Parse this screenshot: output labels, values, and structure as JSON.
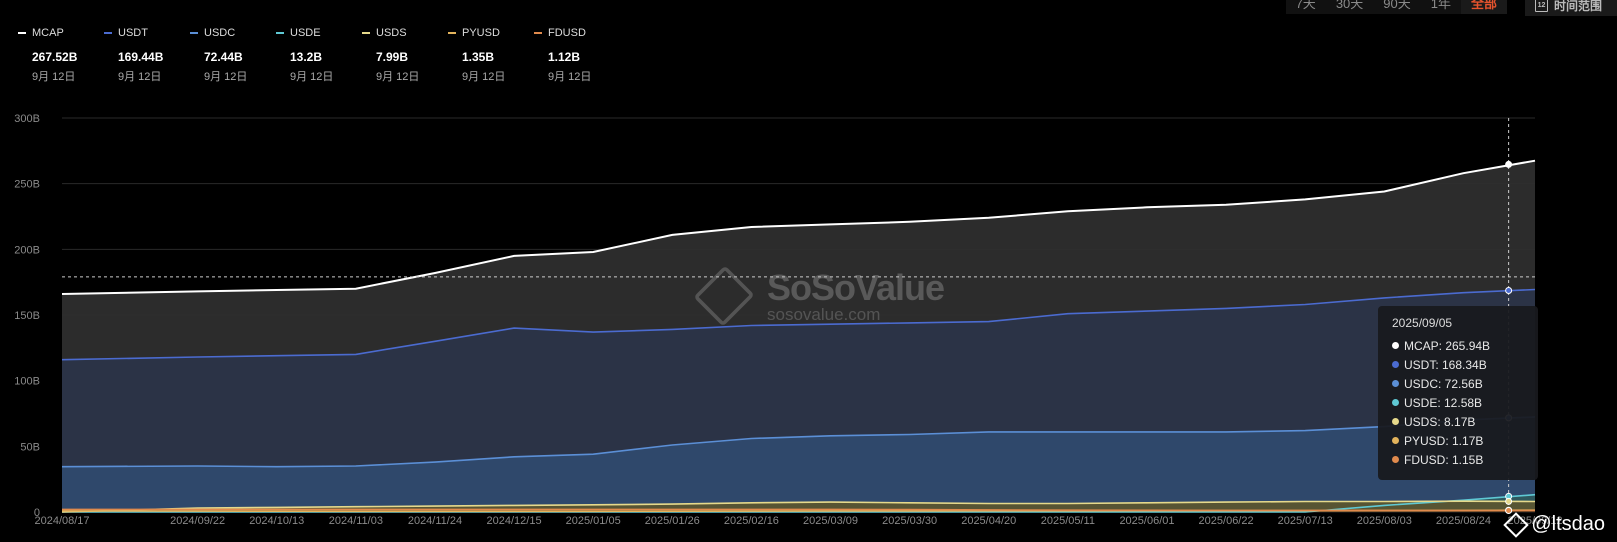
{
  "controls": {
    "ranges": [
      "7天",
      "30天",
      "90天",
      "1年",
      "全部"
    ],
    "active_range": "全部",
    "time_range_label": "时间范围",
    "calendar_icon": "calendar-icon"
  },
  "legend": [
    {
      "name": "MCAP",
      "value": "267.52B",
      "date": "9月 12日",
      "color": "#ffffff"
    },
    {
      "name": "USDT",
      "value": "169.44B",
      "date": "9月 12日",
      "color": "#4b6bd0"
    },
    {
      "name": "USDC",
      "value": "72.44B",
      "date": "9月 12日",
      "color": "#5b8fd6"
    },
    {
      "name": "USDE",
      "value": "13.2B",
      "date": "9月 12日",
      "color": "#5fc9d4"
    },
    {
      "name": "USDS",
      "value": "7.99B",
      "date": "9月 12日",
      "color": "#e6d98b"
    },
    {
      "name": "PYUSD",
      "value": "1.35B",
      "date": "9月 12日",
      "color": "#e3b35c"
    },
    {
      "name": "FDUSD",
      "value": "1.12B",
      "date": "9月 12日",
      "color": "#e08a4d"
    }
  ],
  "watermark": {
    "name": "SoSoValue",
    "url": "sosovalue.com"
  },
  "tooltip": {
    "date": "2025/09/05",
    "rows": [
      {
        "label": "MCAP: 265.94B",
        "color": "#ffffff"
      },
      {
        "label": "USDT: 168.34B",
        "color": "#4b6bd0"
      },
      {
        "label": "USDC: 72.56B",
        "color": "#5b8fd6"
      },
      {
        "label": "USDE: 12.58B",
        "color": "#5fc9d4"
      },
      {
        "label": "USDS: 8.17B",
        "color": "#e6d98b"
      },
      {
        "label": "PYUSD: 1.17B",
        "color": "#e3b35c"
      },
      {
        "label": "FDUSD: 1.15B",
        "color": "#e08a4d"
      }
    ]
  },
  "credit": {
    "text": "@ltsdao",
    "icon": "binance-square-icon"
  },
  "crosshair": {
    "x_date": "2025/09/05",
    "y_value": 179
  },
  "chart_data": {
    "type": "area",
    "x_dates": [
      "2024/08/17",
      "2024/09/22",
      "2024/10/13",
      "2024/11/03",
      "2024/11/24",
      "2024/12/15",
      "2025/01/05",
      "2025/01/26",
      "2025/02/16",
      "2025/03/09",
      "2025/03/30",
      "2025/04/20",
      "2025/05/11",
      "2025/06/01",
      "2025/06/22",
      "2025/07/13",
      "2025/08/03",
      "2025/08/24",
      "2025/09/12"
    ],
    "x_tick_labels": [
      "2024/08/17",
      "2024/09/22",
      "2024/10/13",
      "2024/11/03",
      "2024/11/24",
      "2024/12/15",
      "2025/01/05",
      "2025/01/26",
      "2025/02/16",
      "2025/03/09",
      "2025/03/30",
      "2025/04/20",
      "2025/05/11",
      "2025/06/01",
      "2025/06/22",
      "2025/07/13",
      "2025/08/03",
      "2025/08/24",
      "2025/09/12"
    ],
    "y_ticks": [
      "0",
      "50B",
      "100B",
      "150B",
      "200B",
      "250B",
      "300B"
    ],
    "ylim": [
      0,
      300
    ],
    "grid": true,
    "series": [
      {
        "name": "MCAP",
        "color": "#ffffff",
        "fill": "#2e2e2e",
        "values": [
          166,
          168,
          169,
          170,
          182,
          195,
          198,
          211,
          217,
          219,
          221,
          224,
          229,
          232,
          234,
          238,
          244,
          258,
          267.5
        ]
      },
      {
        "name": "USDT",
        "color": "#4b6bd0",
        "fill": "#2b3448",
        "values": [
          116,
          118,
          119,
          120,
          130,
          140,
          137,
          139,
          142,
          143,
          144,
          145,
          151,
          153,
          155,
          158,
          163,
          167,
          169.4
        ]
      },
      {
        "name": "USDC",
        "color": "#5b8fd6",
        "fill": "#2f4a6e",
        "values": [
          34.5,
          35,
          34.5,
          35,
          38,
          42,
          44,
          51,
          56,
          58,
          59,
          61,
          61,
          61,
          61,
          62,
          65,
          70,
          72.4
        ]
      },
      {
        "name": "USDE",
        "color": "#5fc9d4",
        "fill": "#2e5a5e",
        "values": [
          0,
          0,
          0,
          0,
          0,
          0,
          0,
          0,
          0,
          0,
          0,
          0,
          0,
          0,
          0,
          0,
          5,
          9,
          13.2
        ]
      },
      {
        "name": "USDS",
        "color": "#e6d98b",
        "fill": "#5a5530",
        "values": [
          0,
          3,
          3.5,
          4,
          4.5,
          5,
          5.5,
          6,
          7,
          7.5,
          7,
          6.5,
          6.5,
          7,
          7.5,
          8,
          8,
          8.2,
          8
        ]
      },
      {
        "name": "PYUSD",
        "color": "#e3b35c",
        "fill": "#5a4422",
        "values": [
          0.8,
          0.7,
          0.6,
          0.5,
          0.5,
          0.5,
          0.5,
          0.6,
          0.7,
          0.8,
          0.8,
          0.9,
          0.9,
          1,
          1,
          1,
          1.1,
          1.2,
          1.35
        ]
      },
      {
        "name": "FDUSD",
        "color": "#e08a4d",
        "fill": "#5a3820",
        "values": [
          2,
          2,
          2,
          2,
          2,
          2,
          2,
          2,
          2,
          2,
          1.8,
          1.6,
          1.4,
          1.3,
          1.2,
          1.2,
          1.2,
          1.15,
          1.12
        ]
      }
    ]
  }
}
